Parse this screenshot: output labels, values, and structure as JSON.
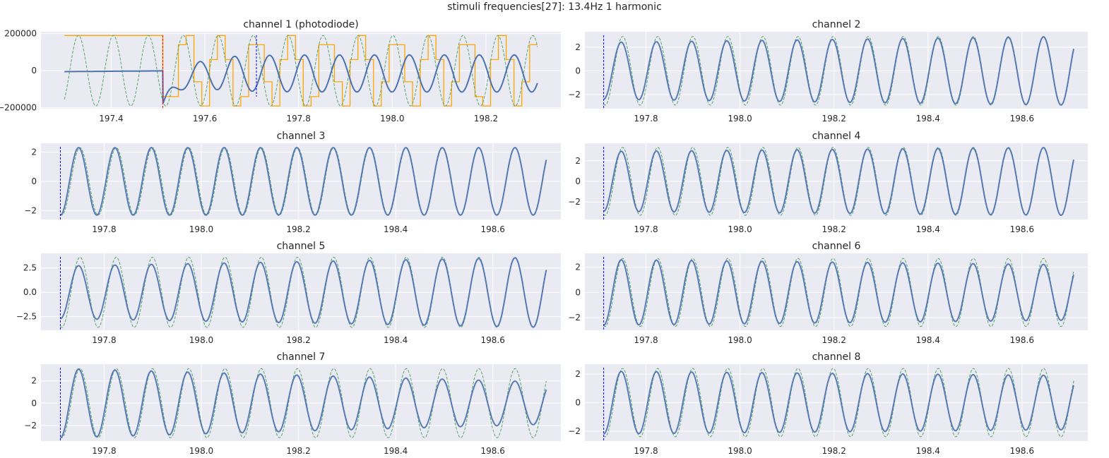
{
  "figure": {
    "suptitle": "stimuli frequencies[27]: 13.4Hz 1 harmonic",
    "colors": {
      "background": "#eaeaf2",
      "grid": "#ffffff",
      "signal": "#4c72b0",
      "reference": "#55a868",
      "stimulus": "#ffa500",
      "onset_marker": "#ff0000",
      "window_marker": "#0000ff",
      "text": "#262626"
    }
  },
  "chart_data": [
    {
      "type": "line",
      "title": "channel 1 (photodiode)",
      "xlim": [
        197.25,
        198.36
      ],
      "ylim": [
        -205000,
        210000
      ],
      "xticks": [
        197.4,
        197.6,
        197.8,
        198.0,
        198.2
      ],
      "xtick_labels": [
        "197.4",
        "197.6",
        "197.8",
        "198.0",
        "198.2"
      ],
      "yticks": [
        -200000,
        0,
        200000
      ],
      "ytick_labels": [
        "−200000",
        "0",
        "200000"
      ],
      "grid": true,
      "x_range": [
        197.3,
        198.31
      ],
      "frequency_hz": 13.4,
      "stimulus_onset": 197.51,
      "window_start": 197.71,
      "reference_amplitude": 190000,
      "stimulus_levels": [
        -190000,
        -140000,
        -60000,
        60000,
        140000,
        190000
      ],
      "signal_amplitude": 100000,
      "series": [
        {
          "role": "signal",
          "style": "solid",
          "color": "#4c72b0"
        },
        {
          "role": "reference",
          "style": "dashed",
          "color": "#55a868"
        },
        {
          "role": "stimulus",
          "style": "step",
          "color": "#ffa500"
        }
      ]
    },
    {
      "type": "line",
      "title": "channel 2",
      "xlim": [
        197.67,
        198.74
      ],
      "ylim": [
        -3.2,
        3.3
      ],
      "xticks": [
        197.8,
        198.0,
        198.2,
        198.4,
        198.6
      ],
      "xtick_labels": [
        "197.8",
        "198.0",
        "198.2",
        "198.4",
        "198.6"
      ],
      "yticks": [
        -2,
        0,
        2
      ],
      "ytick_labels": [
        "−2",
        "0",
        "2"
      ],
      "grid": true,
      "x_range": [
        197.71,
        198.71
      ],
      "frequency_hz": 13.4,
      "window_start": 197.71,
      "reference_amplitude": 2.9,
      "signal_amplitude_start": 2.4,
      "signal_amplitude_end": 2.9
    },
    {
      "type": "line",
      "title": "channel 3",
      "xlim": [
        197.67,
        198.74
      ],
      "ylim": [
        -2.6,
        2.6
      ],
      "xticks": [
        197.8,
        198.0,
        198.2,
        198.4,
        198.6
      ],
      "xtick_labels": [
        "197.8",
        "198.0",
        "198.2",
        "198.4",
        "198.6"
      ],
      "yticks": [
        -2,
        0,
        2
      ],
      "ytick_labels": [
        "−2",
        "0",
        "2"
      ],
      "grid": true,
      "x_range": [
        197.71,
        198.71
      ],
      "frequency_hz": 13.4,
      "window_start": 197.71,
      "reference_amplitude": 2.3,
      "signal_amplitude_start": 2.3,
      "signal_amplitude_end": 2.3
    },
    {
      "type": "line",
      "title": "channel 4",
      "xlim": [
        197.67,
        198.74
      ],
      "ylim": [
        -3.7,
        3.7
      ],
      "xticks": [
        197.8,
        198.0,
        198.2,
        198.4,
        198.6
      ],
      "xtick_labels": [
        "197.8",
        "198.0",
        "198.2",
        "198.4",
        "198.6"
      ],
      "yticks": [
        -2,
        0,
        2
      ],
      "ytick_labels": [
        "−2",
        "0",
        "2"
      ],
      "grid": true,
      "x_range": [
        197.71,
        198.71
      ],
      "frequency_hz": 13.4,
      "window_start": 197.71,
      "reference_amplitude": 3.3,
      "signal_amplitude_start": 2.9,
      "signal_amplitude_end": 3.3
    },
    {
      "type": "line",
      "title": "channel 5",
      "xlim": [
        197.67,
        198.74
      ],
      "ylim": [
        -3.9,
        4.0
      ],
      "xticks": [
        197.8,
        198.0,
        198.2,
        198.4,
        198.6
      ],
      "xtick_labels": [
        "197.8",
        "198.0",
        "198.2",
        "198.4",
        "198.6"
      ],
      "yticks": [
        -2.5,
        0.0,
        2.5
      ],
      "ytick_labels": [
        "−2.5",
        "0.0",
        "2.5"
      ],
      "grid": true,
      "x_range": [
        197.71,
        198.71
      ],
      "frequency_hz": 13.4,
      "window_start": 197.71,
      "reference_amplitude": 3.6,
      "signal_amplitude_start": 2.7,
      "signal_amplitude_end": 3.6
    },
    {
      "type": "line",
      "title": "channel 6",
      "xlim": [
        197.67,
        198.74
      ],
      "ylim": [
        -3.0,
        3.1
      ],
      "xticks": [
        197.8,
        198.0,
        198.2,
        198.4,
        198.6
      ],
      "xtick_labels": [
        "197.8",
        "198.0",
        "198.2",
        "198.4",
        "198.6"
      ],
      "yticks": [
        -2,
        0,
        2
      ],
      "ytick_labels": [
        "−2",
        "0",
        "2"
      ],
      "grid": true,
      "x_range": [
        197.71,
        198.71
      ],
      "frequency_hz": 13.4,
      "window_start": 197.71,
      "reference_amplitude": 2.7,
      "signal_amplitude_start": 2.6,
      "signal_amplitude_end": 2.2
    },
    {
      "type": "line",
      "title": "channel 7",
      "xlim": [
        197.67,
        198.74
      ],
      "ylim": [
        -3.4,
        3.5
      ],
      "xticks": [
        197.8,
        198.0,
        198.2,
        198.4,
        198.6
      ],
      "xtick_labels": [
        "197.8",
        "198.0",
        "198.2",
        "198.4",
        "198.6"
      ],
      "yticks": [
        -2,
        0,
        2
      ],
      "ytick_labels": [
        "−2",
        "0",
        "2"
      ],
      "grid": true,
      "x_range": [
        197.71,
        198.71
      ],
      "frequency_hz": 13.4,
      "window_start": 197.71,
      "reference_amplitude": 3.1,
      "signal_amplitude_start": 3.1,
      "signal_amplitude_end": 1.9
    },
    {
      "type": "line",
      "title": "channel 8",
      "xlim": [
        197.67,
        198.74
      ],
      "ylim": [
        -2.7,
        2.7
      ],
      "xticks": [
        197.8,
        198.0,
        198.2,
        198.4,
        198.6
      ],
      "xtick_labels": [
        "197.8",
        "198.0",
        "198.2",
        "198.4",
        "198.6"
      ],
      "yticks": [
        -2,
        0,
        2
      ],
      "ytick_labels": [
        "−2",
        "0",
        "2"
      ],
      "grid": true,
      "x_range": [
        197.71,
        198.71
      ],
      "frequency_hz": 13.4,
      "window_start": 197.71,
      "reference_amplitude": 2.4,
      "signal_amplitude_start": 2.2,
      "signal_amplitude_end": 1.9
    }
  ]
}
